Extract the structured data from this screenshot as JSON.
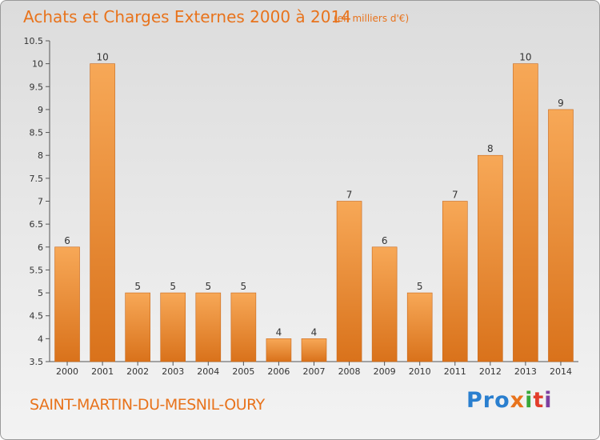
{
  "chart_data": {
    "type": "bar",
    "title": "Achats et Charges Externes 2000 à 2014",
    "unit_label": "(en milliers d'€)",
    "categories": [
      "2000",
      "2001",
      "2002",
      "2003",
      "2004",
      "2005",
      "2006",
      "2007",
      "2008",
      "2009",
      "2010",
      "2011",
      "2012",
      "2013",
      "2014"
    ],
    "values": [
      6,
      10,
      5,
      5,
      5,
      5,
      4,
      4,
      7,
      6,
      5,
      7,
      8,
      10,
      9
    ],
    "value_labels": [
      "6",
      "10",
      "5",
      "5",
      "5",
      "5",
      "4",
      "4",
      "7",
      "6",
      "5",
      "7",
      "8",
      "10",
      "9"
    ],
    "ylim": [
      3.5,
      10.5
    ],
    "yticks": [
      3.5,
      4,
      4.5,
      5,
      5.5,
      6,
      6.5,
      7,
      7.5,
      8,
      8.5,
      9,
      9.5,
      10,
      10.5
    ],
    "ytick_labels": [
      "3.5",
      "4",
      "4.5",
      "5",
      "5.5",
      "6",
      "6.5",
      "7",
      "7.5",
      "8",
      "8.5",
      "9",
      "9.5",
      "10",
      "10.5"
    ],
    "grid": false,
    "bar_color": "#f0903a"
  },
  "commune": "SAINT-MARTIN-DU-MESNIL-OURY",
  "logo": {
    "p1": "Pro",
    "x": "x",
    "i1": "i",
    "t": "t",
    "i2": "i"
  }
}
